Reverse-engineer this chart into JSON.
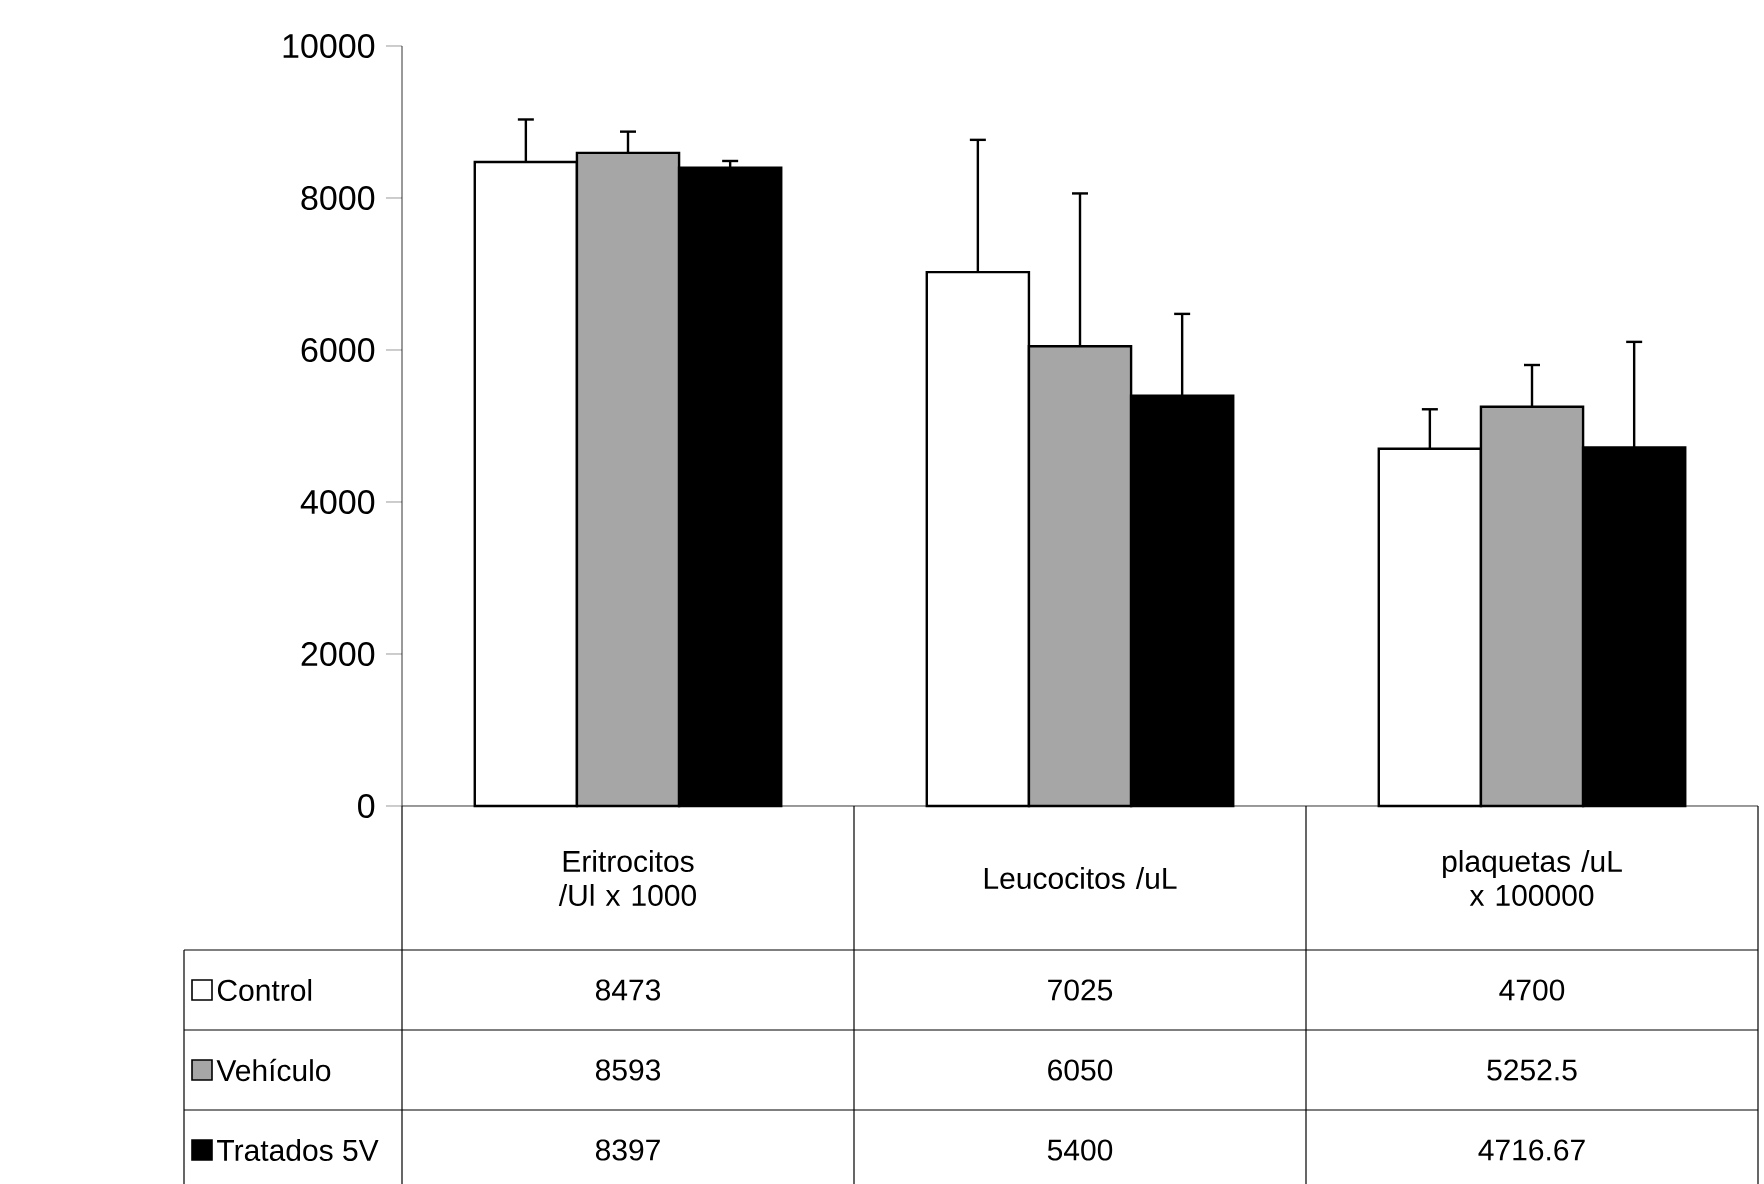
{
  "chart_data": {
    "type": "bar",
    "categories": [
      "Eritrocitos /Ul x 1000",
      "Leucocitos /uL",
      "plaquetas /uL x 100000"
    ],
    "series": [
      {
        "name": "Control",
        "color": "#ffffff",
        "values": [
          8473,
          7025,
          4700
        ],
        "errors": [
          560,
          1740,
          520
        ]
      },
      {
        "name": "Vehículo",
        "color": "#a6a6a6",
        "values": [
          8593,
          6050,
          5252.5
        ],
        "errors": [
          280,
          2010,
          550
        ]
      },
      {
        "name": "Tratados 5V",
        "color": "#000000",
        "values": [
          8397,
          5400,
          4716.67
        ],
        "errors": [
          90,
          1075,
          1390
        ]
      }
    ],
    "ylim": [
      0,
      10000
    ],
    "yticks": [
      0,
      2000,
      4000,
      6000,
      8000,
      10000
    ],
    "grid": false,
    "legend": "bottom",
    "data_labels": true
  }
}
